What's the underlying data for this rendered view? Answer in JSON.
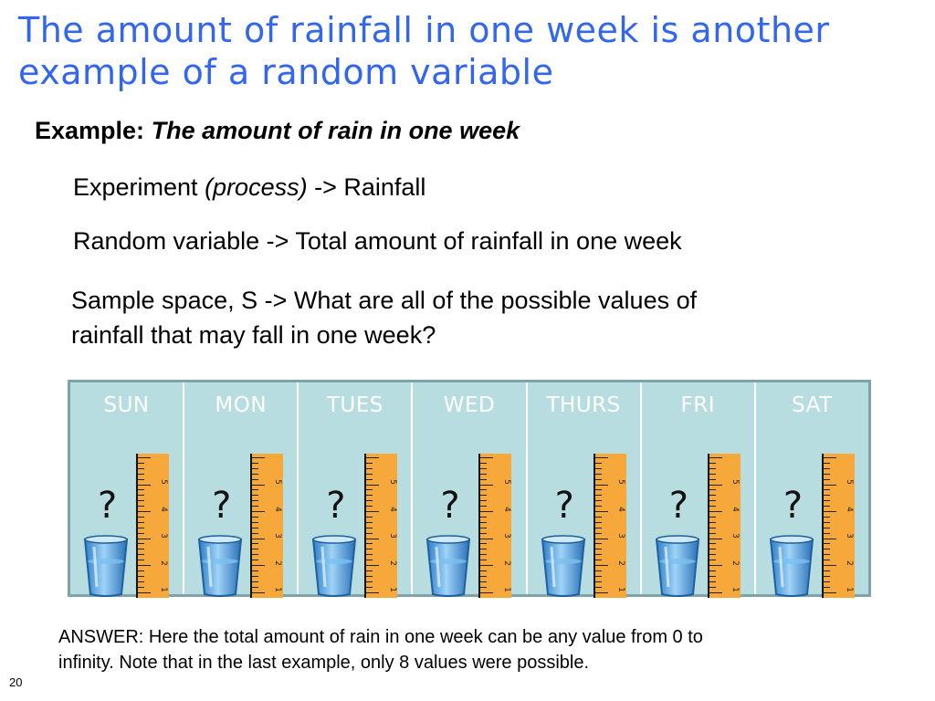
{
  "slide": {
    "title_line1": "The amount of rainfall in one week is another",
    "title_line2": "example of a random variable",
    "example_label": "Example:",
    "example_text": "The amount of rain in one week",
    "experiment_prefix": "Experiment ",
    "experiment_italic": "(process)",
    "experiment_suffix": " -> Rainfall",
    "random_variable": "Random variable -> Total amount of rainfall in one week",
    "sample_space_line1": "Sample space, S -> What are all of the possible values of",
    "sample_space_line2": "rainfall that may fall in one week?",
    "answer_line1": "ANSWER: Here the total amount of rain in one week can be any value from 0 to",
    "answer_line2": "infinity. Note that in the last example, only 8 values were possible.",
    "page_number": "20"
  },
  "days": [
    {
      "label": "SUN",
      "mark": "?"
    },
    {
      "label": "MON",
      "mark": "?"
    },
    {
      "label": "TUES",
      "mark": "?"
    },
    {
      "label": "WED",
      "mark": "?"
    },
    {
      "label": "THURS",
      "mark": "?"
    },
    {
      "label": "FRI",
      "mark": "?"
    },
    {
      "label": "SAT",
      "mark": "?"
    }
  ],
  "ruler_numbers": [
    "1",
    "2",
    "3",
    "4",
    "5"
  ],
  "colors": {
    "title": "#3366ee",
    "strip_background": "#b8dde0",
    "ruler": "#f7a83a",
    "glass": "#5aa9e6"
  },
  "icons": {
    "glass": "water-glass-icon",
    "ruler": "ruler-icon"
  }
}
